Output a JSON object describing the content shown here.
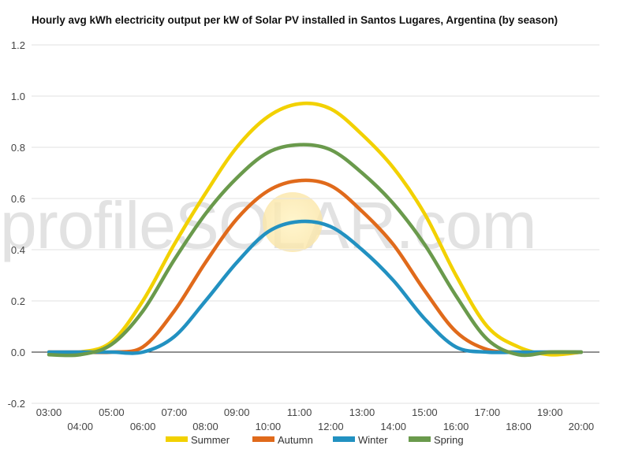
{
  "chart_data": {
    "type": "line",
    "title": "Hourly avg kWh electricity output per kW of Solar PV installed in Santos Lugares, Argentina (by season)",
    "watermark": "profileSOLAR.com",
    "xlabel": "",
    "ylabel": "",
    "ylim": [
      -0.2,
      1.2
    ],
    "yticks": [
      "-0.2",
      "0.0",
      "0.2",
      "0.4",
      "0.6",
      "0.8",
      "1.0",
      "1.2"
    ],
    "categories": [
      "03:00",
      "04:00",
      "05:00",
      "06:00",
      "07:00",
      "08:00",
      "09:00",
      "10:00",
      "11:00",
      "12:00",
      "13:00",
      "14:00",
      "15:00",
      "16:00",
      "17:00",
      "18:00",
      "19:00",
      "20:00"
    ],
    "grid": true,
    "legend_position": "bottom",
    "series": [
      {
        "name": "Summer",
        "color": "#f2d100",
        "values": [
          0.0,
          0.0,
          0.04,
          0.2,
          0.42,
          0.62,
          0.8,
          0.92,
          0.97,
          0.95,
          0.85,
          0.72,
          0.54,
          0.3,
          0.1,
          0.02,
          -0.01,
          0.0
        ]
      },
      {
        "name": "Autumn",
        "color": "#e06a1b",
        "values": [
          0.0,
          0.0,
          0.0,
          0.02,
          0.16,
          0.35,
          0.52,
          0.63,
          0.67,
          0.65,
          0.55,
          0.42,
          0.24,
          0.08,
          0.01,
          0.0,
          0.0,
          0.0
        ]
      },
      {
        "name": "Winter",
        "color": "#2291c1",
        "values": [
          0.0,
          0.0,
          0.0,
          0.0,
          0.06,
          0.2,
          0.35,
          0.47,
          0.51,
          0.49,
          0.4,
          0.28,
          0.13,
          0.02,
          0.0,
          0.0,
          0.0,
          0.0
        ]
      },
      {
        "name": "Spring",
        "color": "#6a9a4c",
        "values": [
          -0.01,
          -0.01,
          0.03,
          0.16,
          0.36,
          0.54,
          0.68,
          0.78,
          0.81,
          0.79,
          0.7,
          0.58,
          0.42,
          0.22,
          0.05,
          -0.01,
          0.0,
          0.0
        ]
      }
    ]
  }
}
